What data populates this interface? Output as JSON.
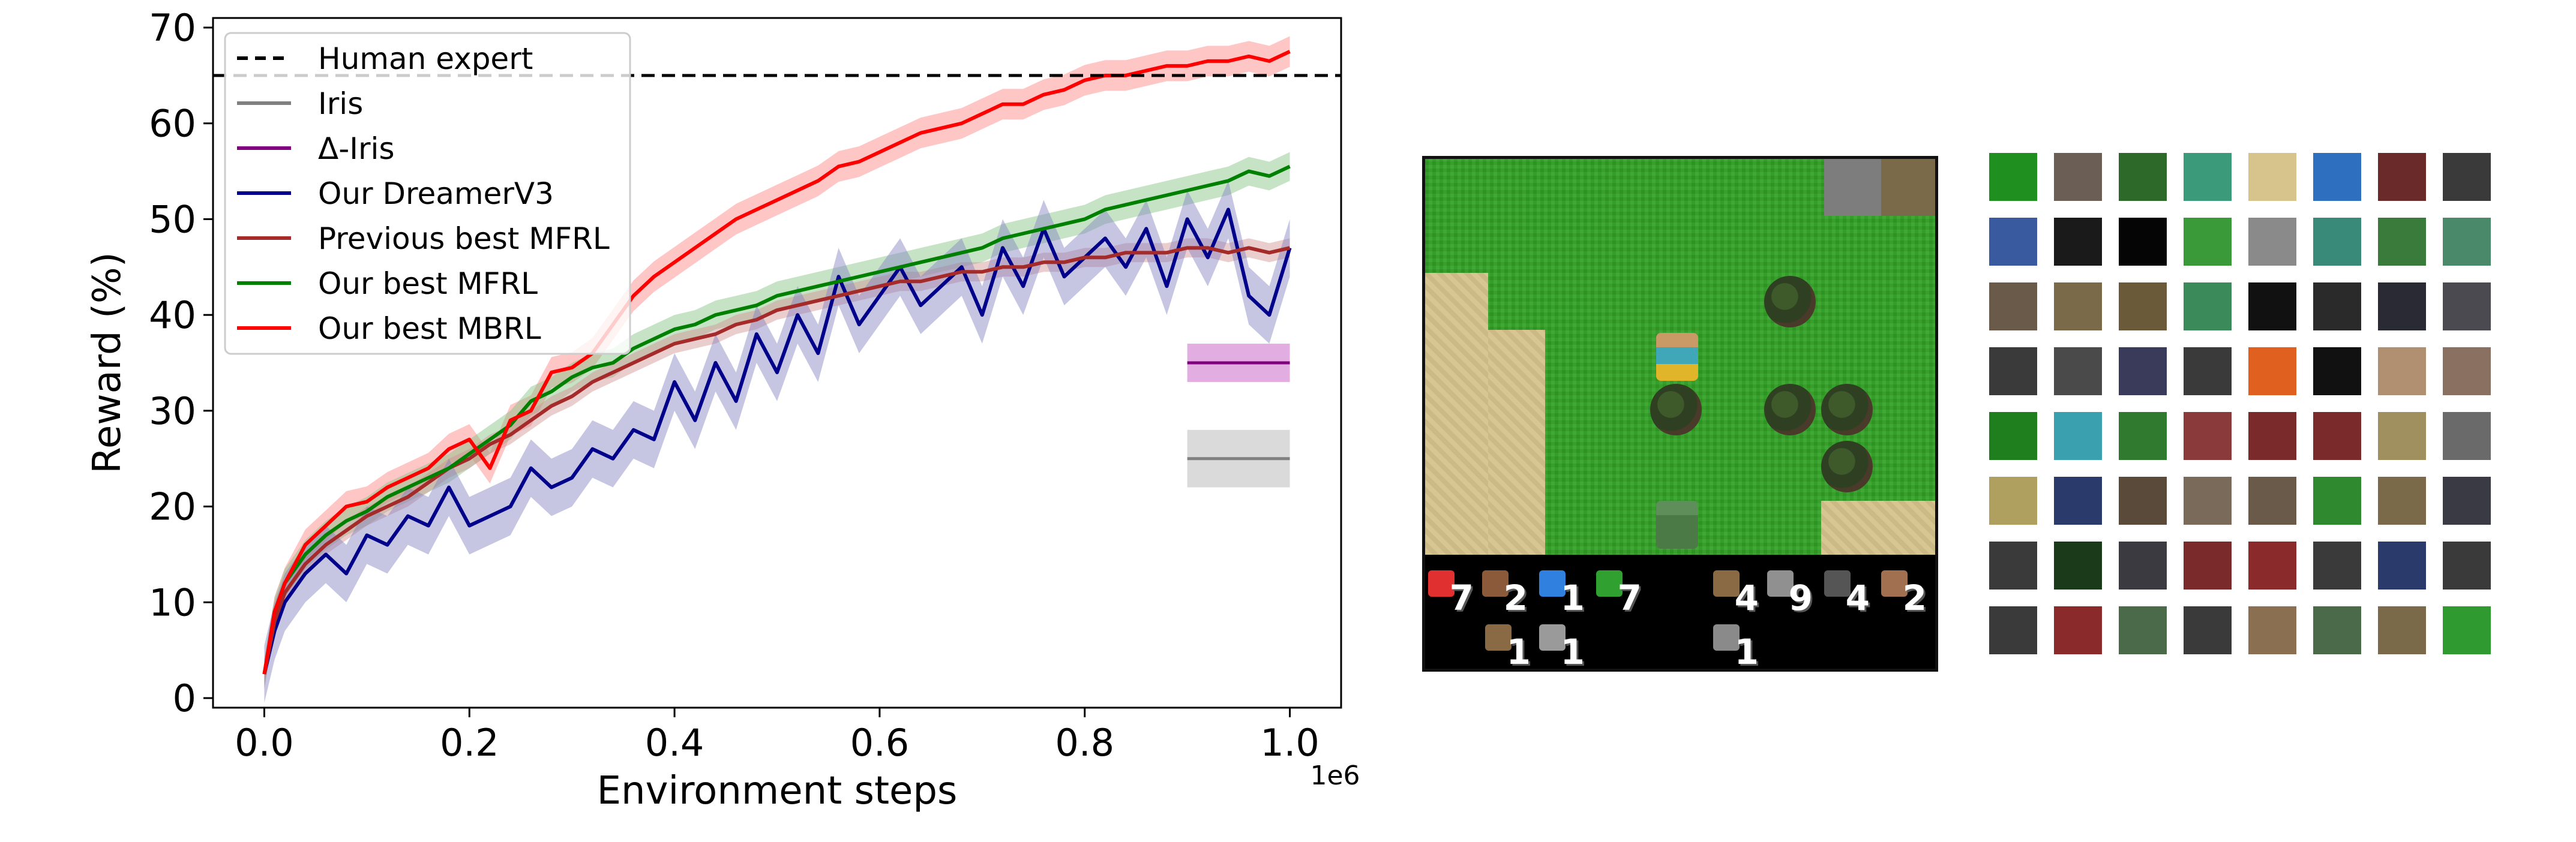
{
  "chart_data": {
    "type": "line",
    "title": "",
    "xlabel": "Environment steps",
    "ylabel": "Reward (%)",
    "x_offset_label": "1e6",
    "xlim": [
      -0.05,
      1.05
    ],
    "ylim": [
      -1,
      71
    ],
    "xticks": [
      0.0,
      0.2,
      0.4,
      0.6,
      0.8,
      1.0
    ],
    "xtick_labels": [
      "0.0",
      "0.2",
      "0.4",
      "0.6",
      "0.8",
      "1.0"
    ],
    "yticks": [
      0,
      10,
      20,
      30,
      40,
      50,
      60,
      70
    ],
    "ytick_labels": [
      "0",
      "10",
      "20",
      "30",
      "40",
      "50",
      "60",
      "70"
    ],
    "grid": false,
    "legend_position": "top-left",
    "legend": [
      {
        "name": "Human expert",
        "color": "#000000",
        "dashed": true
      },
      {
        "name": "Iris",
        "color": "#808080",
        "dashed": false
      },
      {
        "name": "Δ-Iris",
        "color": "#800080",
        "dashed": false
      },
      {
        "name": "Our DreamerV3",
        "color": "#00008b",
        "dashed": false
      },
      {
        "name": "Previous best MFRL",
        "color": "#a52a2a",
        "dashed": false
      },
      {
        "name": "Our best MFRL",
        "color": "#008000",
        "dashed": false
      },
      {
        "name": "Our best MBRL",
        "color": "#ff0000",
        "dashed": false
      }
    ],
    "hlines": [
      {
        "name": "Human expert",
        "y": 65,
        "color": "#000000"
      }
    ],
    "final_markers": [
      {
        "name": "Δ-Iris",
        "y": 35,
        "low": 33,
        "high": 37,
        "x_range": [
          0.9,
          1.0
        ],
        "color": "#800080",
        "band_color": "#dda0dd"
      },
      {
        "name": "Iris",
        "y": 25,
        "low": 22,
        "high": 28,
        "x_range": [
          0.9,
          1.0
        ],
        "color": "#808080",
        "band_color": "#d3d3d3"
      }
    ],
    "series": [
      {
        "name": "Our best MBRL",
        "color": "#ff0000",
        "band_color": "#ff8080",
        "band": 1.6,
        "x": [
          0.0,
          0.01,
          0.02,
          0.04,
          0.06,
          0.08,
          0.1,
          0.12,
          0.14,
          0.16,
          0.18,
          0.2,
          0.22,
          0.24,
          0.26,
          0.28,
          0.3,
          0.32,
          0.34,
          0.36,
          0.38,
          0.4,
          0.42,
          0.44,
          0.46,
          0.48,
          0.5,
          0.52,
          0.54,
          0.56,
          0.58,
          0.6,
          0.62,
          0.64,
          0.66,
          0.68,
          0.7,
          0.72,
          0.74,
          0.76,
          0.78,
          0.8,
          0.82,
          0.84,
          0.86,
          0.88,
          0.9,
          0.92,
          0.94,
          0.96,
          0.98,
          1.0
        ],
        "y": [
          2.5,
          9,
          12,
          16,
          18,
          20,
          20.5,
          22,
          23,
          24,
          26,
          27,
          24,
          29,
          30,
          34,
          34.5,
          36,
          39,
          42,
          44,
          45.5,
          47,
          48.5,
          50,
          51,
          52,
          53,
          54,
          55.5,
          56,
          57,
          58,
          59,
          59.5,
          60,
          61,
          62,
          62,
          63,
          63.5,
          64.5,
          65,
          65,
          65.5,
          66,
          66,
          66.5,
          66.5,
          67,
          66.5,
          67.5
        ]
      },
      {
        "name": "Our best MFRL",
        "color": "#008000",
        "band_color": "#80c080",
        "band": 1.5,
        "x": [
          0.0,
          0.01,
          0.02,
          0.04,
          0.06,
          0.08,
          0.1,
          0.12,
          0.14,
          0.16,
          0.18,
          0.2,
          0.22,
          0.24,
          0.26,
          0.28,
          0.3,
          0.32,
          0.34,
          0.36,
          0.38,
          0.4,
          0.42,
          0.44,
          0.46,
          0.48,
          0.5,
          0.52,
          0.54,
          0.56,
          0.58,
          0.6,
          0.62,
          0.64,
          0.66,
          0.68,
          0.7,
          0.72,
          0.74,
          0.76,
          0.78,
          0.8,
          0.82,
          0.84,
          0.86,
          0.88,
          0.9,
          0.92,
          0.94,
          0.96,
          0.98,
          1.0
        ],
        "y": [
          2.5,
          9,
          12,
          15,
          17,
          18.5,
          19.5,
          21,
          22,
          23,
          24,
          25.5,
          27,
          28.5,
          31,
          32,
          33.5,
          34.5,
          35,
          36.5,
          37.5,
          38.5,
          39,
          40,
          40.5,
          41,
          42,
          42.5,
          43,
          43.5,
          44,
          44.5,
          45,
          45.5,
          46,
          46.5,
          47,
          48,
          48.5,
          49,
          49.5,
          50,
          51,
          51.5,
          52,
          52.5,
          53,
          53.5,
          54,
          55,
          54.5,
          55.5
        ]
      },
      {
        "name": "Previous best MFRL",
        "color": "#a52a2a",
        "band_color": "#d09090",
        "band": 1.0,
        "x": [
          0.0,
          0.01,
          0.02,
          0.04,
          0.06,
          0.08,
          0.1,
          0.12,
          0.14,
          0.16,
          0.18,
          0.2,
          0.22,
          0.24,
          0.26,
          0.28,
          0.3,
          0.32,
          0.34,
          0.36,
          0.38,
          0.4,
          0.42,
          0.44,
          0.46,
          0.48,
          0.5,
          0.52,
          0.54,
          0.56,
          0.58,
          0.6,
          0.62,
          0.64,
          0.66,
          0.68,
          0.7,
          0.72,
          0.74,
          0.76,
          0.78,
          0.8,
          0.82,
          0.84,
          0.86,
          0.88,
          0.9,
          0.92,
          0.94,
          0.96,
          0.98,
          1.0
        ],
        "y": [
          2.5,
          8,
          11,
          14,
          16,
          17.5,
          19,
          20,
          21,
          22.5,
          24,
          25,
          26.5,
          27.5,
          29,
          30.5,
          31.5,
          33,
          34,
          35,
          36,
          37,
          37.5,
          38,
          39,
          39.5,
          40.5,
          41,
          41.5,
          42,
          42.5,
          43,
          43.5,
          43.5,
          44,
          44.5,
          44.5,
          45,
          45,
          45.5,
          45.5,
          46,
          46,
          46.5,
          46.5,
          46.5,
          47,
          47,
          46.5,
          47,
          46.5,
          47
        ]
      },
      {
        "name": "Our DreamerV3",
        "color": "#00008b",
        "band_color": "#8080c0",
        "band": 3.0,
        "x": [
          0.0,
          0.01,
          0.02,
          0.04,
          0.06,
          0.08,
          0.1,
          0.12,
          0.14,
          0.16,
          0.18,
          0.2,
          0.22,
          0.24,
          0.26,
          0.28,
          0.3,
          0.32,
          0.34,
          0.36,
          0.38,
          0.4,
          0.42,
          0.44,
          0.46,
          0.48,
          0.5,
          0.52,
          0.54,
          0.56,
          0.58,
          0.6,
          0.62,
          0.64,
          0.66,
          0.68,
          0.7,
          0.72,
          0.74,
          0.76,
          0.78,
          0.8,
          0.82,
          0.84,
          0.86,
          0.88,
          0.9,
          0.92,
          0.94,
          0.96,
          0.98,
          1.0
        ],
        "y": [
          2.5,
          7,
          10,
          13,
          15,
          13,
          17,
          16,
          19,
          18,
          22,
          18,
          19,
          20,
          24,
          22,
          23,
          26,
          25,
          28,
          27,
          33,
          29,
          35,
          31,
          38,
          34,
          40,
          36,
          44,
          39,
          42,
          45,
          41,
          43,
          45,
          40,
          47,
          43,
          49,
          44,
          46,
          48,
          45,
          49,
          43,
          50,
          46,
          51,
          42,
          40,
          47
        ]
      }
    ]
  },
  "game": {
    "hud_top": [
      {
        "icon": "heart-icon",
        "value": "7",
        "color": "#e03030"
      },
      {
        "icon": "food-icon",
        "value": "2",
        "color": "#8a5a3a"
      },
      {
        "icon": "drink-icon",
        "value": "1",
        "color": "#3080e0"
      },
      {
        "icon": "energy-icon",
        "value": "7",
        "color": "#30a030"
      },
      {
        "icon": "wood-icon",
        "value": "4",
        "color": "#8a6a44"
      },
      {
        "icon": "stone-icon",
        "value": "9",
        "color": "#909090"
      },
      {
        "icon": "coal-icon",
        "value": "4",
        "color": "#555555"
      },
      {
        "icon": "iron-icon",
        "value": "2",
        "color": "#a07050"
      }
    ],
    "hud_bottom": [
      {
        "icon": "wood-pickaxe-icon",
        "value": "1",
        "color": "#8a6a44"
      },
      {
        "icon": "stone-pickaxe-icon",
        "value": "1",
        "color": "#9a9a9a"
      },
      {
        "icon": "wood-sword-icon",
        "value": "1",
        "color": "#8a8a8a"
      }
    ]
  },
  "tiles": {
    "grid": [
      [
        "#1f8f1f",
        "#6b5f55",
        "#2d6a2a",
        "#3b9a7a",
        "#d6c48c",
        "#2f6fc0",
        "#6a2a2a",
        "#3a3a3a"
      ],
      [
        "#3a5aa0",
        "#1a1a1a",
        "#050505",
        "#3a9a3a",
        "#8a8a8a",
        "#3a8a7a",
        "#3a7a3a",
        "#4a8a6a"
      ],
      [
        "#6a5a4a",
        "#7a6a4a",
        "#6a5a3a",
        "#3a8a5a",
        "#111111",
        "#2a2a2a",
        "#2a2a34",
        "#4a4a50"
      ],
      [
        "#3a3a3a",
        "#4a4a4a",
        "#3a3a5a",
        "#3a3a3a",
        "#e06020",
        "#111111",
        "#b09070",
        "#8a7060"
      ],
      [
        "#1f7f1f",
        "#3aa0b0",
        "#2f7a2f",
        "#8a3a3a",
        "#7a2a2a",
        "#7a2a2a",
        "#a09060",
        "#6a6a6a"
      ],
      [
        "#b0a060",
        "#2a3a6a",
        "#5a4a3a",
        "#7a6a5a",
        "#6a5a4a",
        "#2f8a2f",
        "#7a6a4a",
        "#3a3a44"
      ],
      [
        "#3a3a3a",
        "#1a3a1a",
        "#3a3a40",
        "#7a2a2a",
        "#8a2a2a",
        "#3a3a3a",
        "#2a3a6a",
        "#3a3a3a"
      ],
      [
        "#3a3a3a",
        "#8a2a2a",
        "#4a6a4a",
        "#3a3a3a",
        "#8a7050",
        "#4a6a4a",
        "#7a6a4a",
        "#2f9a2f"
      ]
    ]
  }
}
